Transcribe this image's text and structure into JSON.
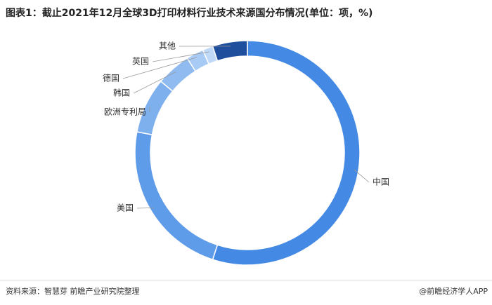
{
  "chart_data": {
    "type": "pie",
    "title": "图表1：截止2021年12月全球3D打印材料行业技术来源国分布情况(单位：项，%)",
    "categories": [
      "中国",
      "美国",
      "欧洲专利局",
      "韩国",
      "德国",
      "英国",
      "其他"
    ],
    "values": [
      55,
      23,
      8,
      5,
      2.5,
      1.5,
      5
    ],
    "colors": [
      "#4489e4",
      "#5e9be9",
      "#7eb0ee",
      "#8fbbf1",
      "#a8cbf5",
      "#c0d9f8",
      "#1f4e9c"
    ],
    "source": "资料来源：智慧芽 前瞻产业研究院整理",
    "brand": "@前瞻经济学人APP"
  }
}
